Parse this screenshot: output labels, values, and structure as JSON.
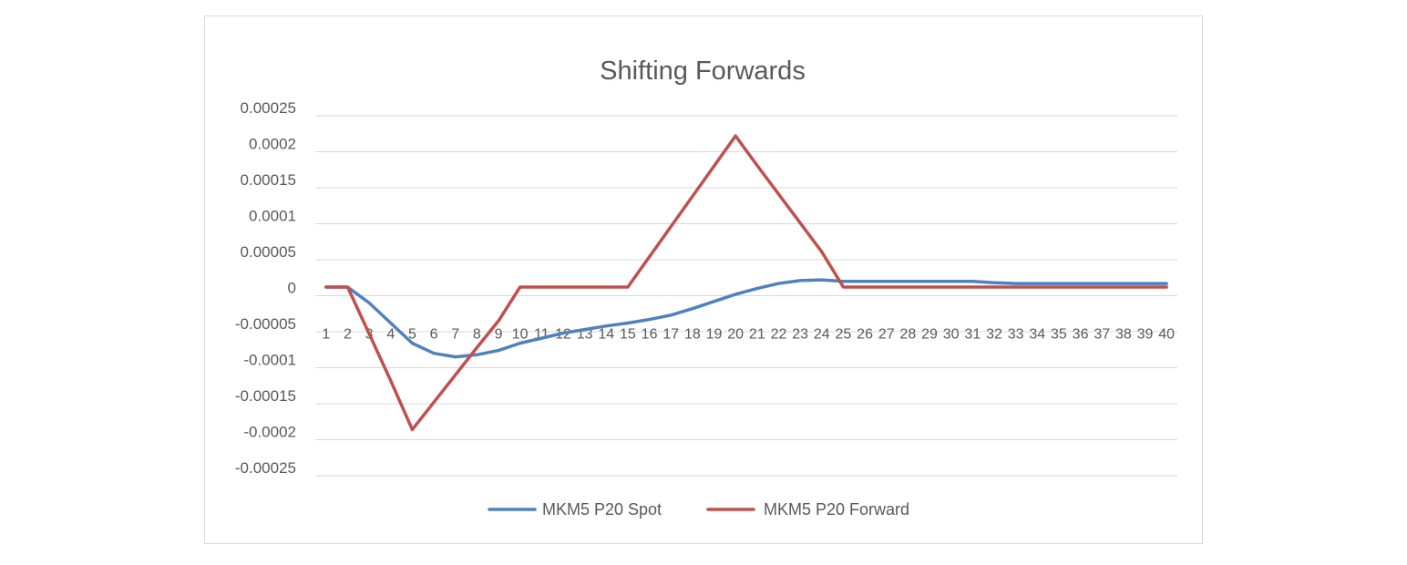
{
  "chart_data": {
    "type": "line",
    "title": "Shifting Forwards",
    "xlabel": "",
    "ylabel": "",
    "categories": [
      "1",
      "2",
      "3",
      "4",
      "5",
      "6",
      "7",
      "8",
      "9",
      "10",
      "11",
      "12",
      "13",
      "14",
      "15",
      "16",
      "17",
      "18",
      "19",
      "20",
      "21",
      "22",
      "23",
      "24",
      "25",
      "26",
      "27",
      "28",
      "29",
      "30",
      "31",
      "32",
      "33",
      "34",
      "35",
      "36",
      "37",
      "38",
      "39",
      "40"
    ],
    "y_ticks": [
      {
        "value": 0.00025,
        "label": "0.00025"
      },
      {
        "value": 0.0002,
        "label": "0.0002"
      },
      {
        "value": 0.00015,
        "label": "0.00015"
      },
      {
        "value": 0.0001,
        "label": "0.0001"
      },
      {
        "value": 5e-05,
        "label": "0.00005"
      },
      {
        "value": 0,
        "label": "0"
      },
      {
        "value": -5e-05,
        "label": "-0.00005"
      },
      {
        "value": -0.0001,
        "label": "-0.0001"
      },
      {
        "value": -0.00015,
        "label": "-0.00015"
      },
      {
        "value": -0.0002,
        "label": "-0.0002"
      },
      {
        "value": -0.00025,
        "label": "-0.00025"
      }
    ],
    "ylim": [
      -0.00025,
      0.00025
    ],
    "grid": true,
    "legend_position": "bottom",
    "series": [
      {
        "name": "MKM5 P20 Spot",
        "color": "#4f81bd",
        "values": [
          1.2e-05,
          1.2e-05,
          -1e-05,
          -3.8e-05,
          -6.6e-05,
          -8e-05,
          -8.5e-05,
          -8.2e-05,
          -7.6e-05,
          -6.6e-05,
          -5.9e-05,
          -5.2e-05,
          -4.7e-05,
          -4.2e-05,
          -3.8e-05,
          -3.3e-05,
          -2.7e-05,
          -1.8e-05,
          -8e-06,
          2e-06,
          1e-05,
          1.7e-05,
          2.1e-05,
          2.2e-05,
          2e-05,
          2e-05,
          2e-05,
          2e-05,
          2e-05,
          2e-05,
          2e-05,
          1.8e-05,
          1.7e-05,
          1.7e-05,
          1.7e-05,
          1.7e-05,
          1.7e-05,
          1.7e-05,
          1.7e-05,
          1.7e-05
        ]
      },
      {
        "name": "MKM5 P20 Forward",
        "color": "#c0504d",
        "values": [
          1.2e-05,
          1.2e-05,
          -5.3e-05,
          -0.000118,
          -0.000186,
          -0.000148,
          -0.00011,
          -7.2e-05,
          -3.5e-05,
          1.2e-05,
          1.2e-05,
          1.2e-05,
          1.2e-05,
          1.2e-05,
          1.2e-05,
          5.4e-05,
          9.6e-05,
          0.000138,
          0.00018,
          0.000222,
          0.000181,
          0.000141,
          0.000101,
          6.1e-05,
          1.2e-05,
          1.2e-05,
          1.2e-05,
          1.2e-05,
          1.2e-05,
          1.2e-05,
          1.2e-05,
          1.2e-05,
          1.2e-05,
          1.2e-05,
          1.2e-05,
          1.2e-05,
          1.2e-05,
          1.2e-05,
          1.2e-05,
          1.2e-05
        ]
      }
    ]
  }
}
